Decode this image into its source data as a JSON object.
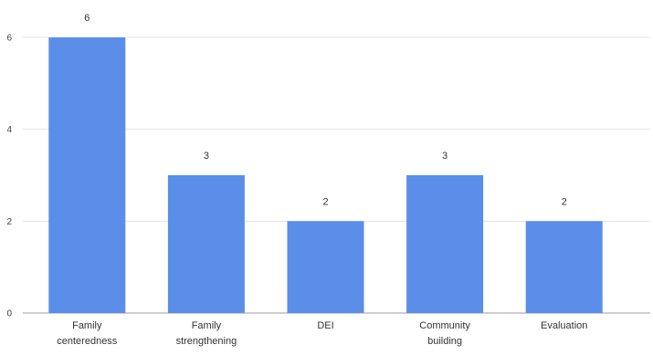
{
  "chart_data": {
    "type": "bar",
    "categories": [
      [
        "Family",
        "centeredness"
      ],
      [
        "Family",
        "strengthening"
      ],
      [
        "DEI"
      ],
      [
        "Community",
        "building"
      ],
      [
        "Evaluation"
      ]
    ],
    "values": [
      6,
      3,
      2,
      3,
      2
    ],
    "data_labels": [
      "6",
      "3",
      "2",
      "3",
      "2"
    ],
    "y_ticks": [
      0,
      2,
      4,
      6
    ],
    "y_tick_labels": [
      "0",
      "2",
      "4",
      "6"
    ],
    "ylim": [
      0,
      6
    ],
    "grid": true,
    "legend": "none",
    "colors": {
      "bar": "#5b8ee8",
      "grid": "#e3e3e3",
      "axis": "#9e9e9e"
    }
  }
}
